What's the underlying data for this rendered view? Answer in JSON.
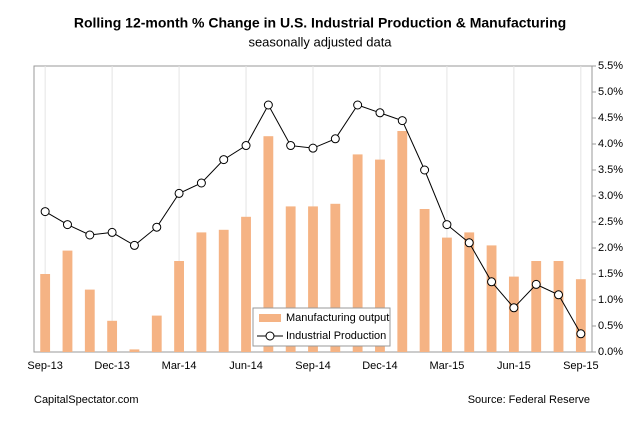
{
  "chart_data": {
    "type": "bar_line",
    "title": "Rolling 12-month % Change in U.S. Industrial Production & Manufacturing",
    "subtitle": "seasonally adjusted data",
    "source_left": "CapitalSpectator.com",
    "source_right": "Source: Federal Reserve",
    "categories": [
      "Sep-13",
      null,
      null,
      "Dec-13",
      null,
      null,
      "Mar-14",
      null,
      null,
      "Jun-14",
      null,
      null,
      "Sep-14",
      null,
      null,
      "Dec-14",
      null,
      null,
      "Mar-15",
      null,
      null,
      "Jun-15",
      null,
      null,
      "Sep-15"
    ],
    "series": [
      {
        "name": "Manufacturing output",
        "type": "bar",
        "color": "#f5b384",
        "values": [
          1.5,
          1.95,
          1.2,
          0.6,
          0.05,
          0.7,
          1.75,
          2.3,
          2.35,
          2.6,
          4.15,
          2.8,
          2.8,
          2.85,
          3.8,
          3.7,
          4.25,
          2.75,
          2.2,
          2.3,
          2.05,
          1.45,
          1.75,
          1.75,
          1.4
        ]
      },
      {
        "name": "Industrial Production",
        "type": "line",
        "color": "#000000",
        "values": [
          2.7,
          2.45,
          2.25,
          2.3,
          2.05,
          2.4,
          3.05,
          3.25,
          3.7,
          3.97,
          4.75,
          3.97,
          3.92,
          4.1,
          4.75,
          4.6,
          4.45,
          3.5,
          2.45,
          2.1,
          1.35,
          0.85,
          1.3,
          1.1,
          0.35
        ]
      }
    ],
    "ylim": [
      0,
      5.5
    ],
    "yticks": [
      {
        "value": 0,
        "label": "0.0%"
      },
      {
        "value": 0.5,
        "label": "0.5%"
      },
      {
        "value": 1,
        "label": "1.0%"
      },
      {
        "value": 1.5,
        "label": "1.5%"
      },
      {
        "value": 2,
        "label": "2.0%"
      },
      {
        "value": 2.5,
        "label": "2.5%"
      },
      {
        "value": 3,
        "label": "3.0%"
      },
      {
        "value": 3.5,
        "label": "3.5%"
      },
      {
        "value": 4,
        "label": "4.0%"
      },
      {
        "value": 4.5,
        "label": "4.5%"
      },
      {
        "value": 5,
        "label": "5.0%"
      },
      {
        "value": 5.5,
        "label": "5.5%"
      }
    ],
    "y_axis_side": "right"
  }
}
